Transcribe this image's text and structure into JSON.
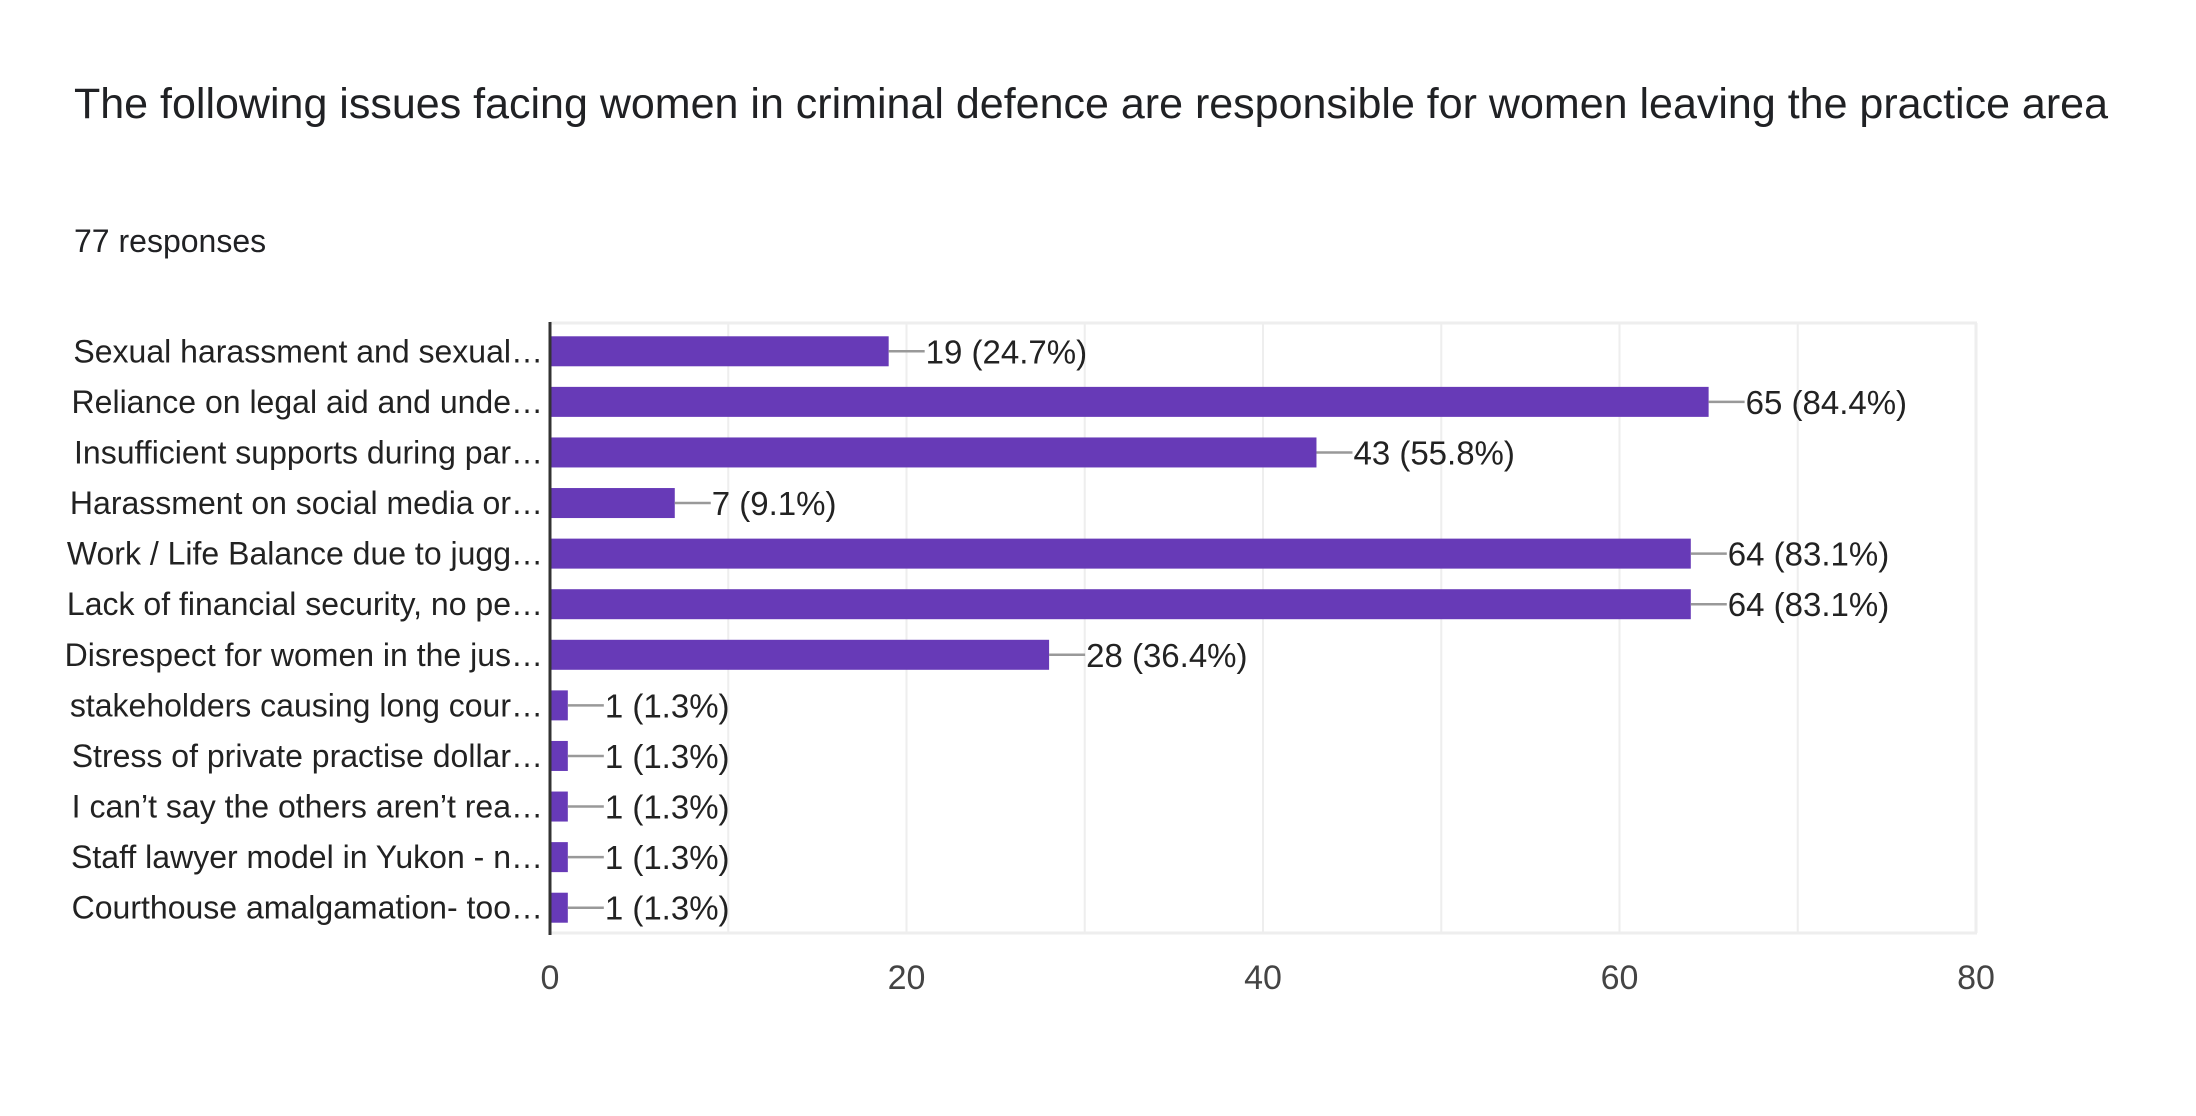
{
  "header": {
    "title": "The following issues facing women in criminal defence are responsible for women leaving the practice area",
    "responses": "77 responses"
  },
  "colors": {
    "bar": "#673ab7",
    "gridline": "#eeeeee",
    "axis": "#333333",
    "connector": "#999999"
  },
  "chart_data": {
    "type": "bar",
    "orientation": "horizontal",
    "title": "The following issues facing women in criminal defence are responsible for women leaving the practice area",
    "subtitle": "77 responses",
    "xlabel": "",
    "ylabel": "",
    "xlim": [
      0,
      80
    ],
    "x_ticks": [
      0,
      20,
      40,
      60,
      80
    ],
    "x_tick_labels": [
      "0",
      "20",
      "40",
      "60",
      "80"
    ],
    "minor_gridlines_every": 10,
    "grid": true,
    "legend": "none",
    "categories": [
      "Sexual harassment and sexual…",
      "Reliance on legal aid and unde…",
      "Insufficient supports during par…",
      "Harassment on social media or…",
      "Work / Life Balance due to jugg…",
      "Lack of financial security, no pe…",
      "Disrespect for women in the jus…",
      "stakeholders causing long cour…",
      "Stress of private practise dollar…",
      "I can’t say the others aren’t rea…",
      "Staff lawyer model in Yukon - n…",
      "Courthouse amalgamation- too…"
    ],
    "values": [
      19,
      65,
      43,
      7,
      64,
      64,
      28,
      1,
      1,
      1,
      1,
      1
    ],
    "data_labels": [
      "19 (24.7%)",
      "65 (84.4%)",
      "43 (55.8%)",
      "7 (9.1%)",
      "64 (83.1%)",
      "64 (83.1%)",
      "28 (36.4%)",
      "1 (1.3%)",
      "1 (1.3%)",
      "1 (1.3%)",
      "1 (1.3%)",
      "1 (1.3%)"
    ]
  }
}
